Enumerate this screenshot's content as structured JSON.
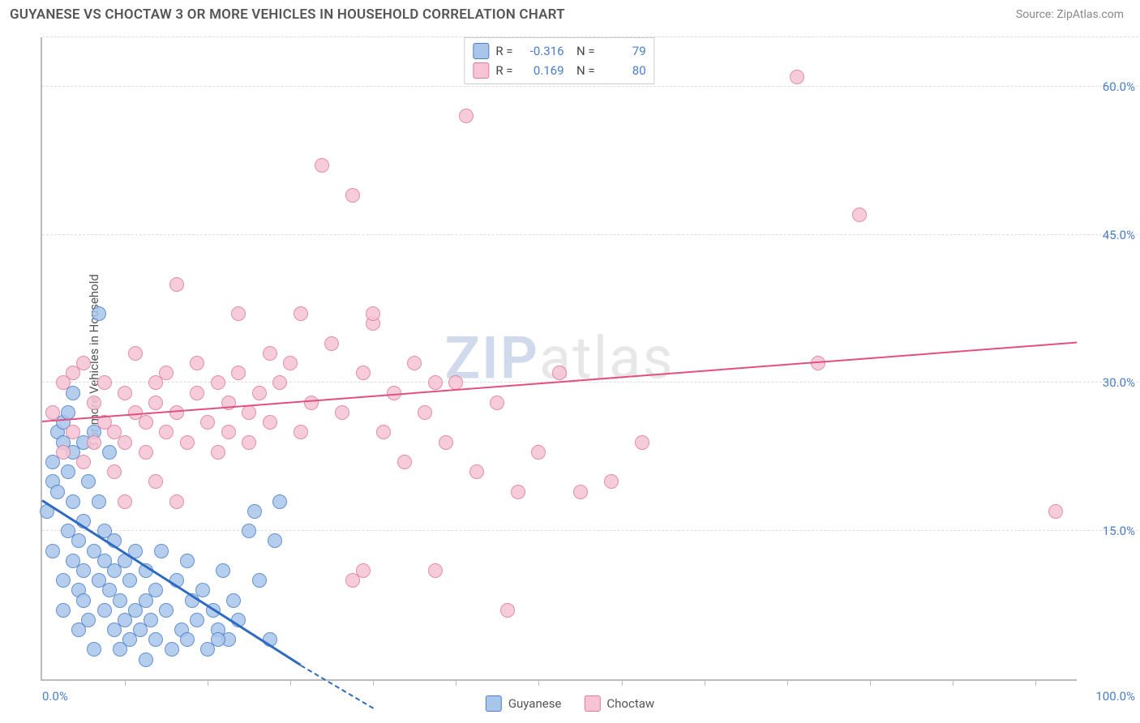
{
  "title": "GUYANESE VS CHOCTAW 3 OR MORE VEHICLES IN HOUSEHOLD CORRELATION CHART",
  "source_label": "Source: ZipAtlas.com",
  "ylabel": "3 or more Vehicles in Household",
  "watermark_prefix": "ZIP",
  "watermark_suffix": "atlas",
  "chart": {
    "type": "scatter",
    "xlim": [
      0,
      100
    ],
    "ylim": [
      0,
      65
    ],
    "yticks": [
      15,
      30,
      45,
      60
    ],
    "ytick_labels": [
      "15.0%",
      "30.0%",
      "45.0%",
      "60.0%"
    ],
    "xticks_major": [
      0,
      100
    ],
    "xtick_labels": [
      "0.0%",
      "100.0%"
    ],
    "xticks_minor": [
      8,
      16,
      24,
      32,
      40,
      48,
      56,
      64,
      72,
      80,
      88,
      96
    ],
    "grid_color": "#dddddd",
    "axis_color": "#bbbbbb",
    "background_color": "#ffffff",
    "marker_radius": 9,
    "marker_border_width": 1.5,
    "marker_fill_opacity": 0.35
  },
  "series": [
    {
      "name": "Guyanese",
      "color_border": "#4a7ec9",
      "color_fill": "#a9c6ea",
      "R": "-0.316",
      "N": "79",
      "trend": {
        "x1": 0,
        "y1": 18,
        "x2": 27,
        "y2": 0,
        "solid_until_x": 25,
        "color": "#2e6bc0",
        "width": 3
      },
      "points": [
        [
          0.5,
          17
        ],
        [
          1,
          20
        ],
        [
          1,
          22
        ],
        [
          1,
          13
        ],
        [
          1.5,
          25
        ],
        [
          1.5,
          19
        ],
        [
          2,
          24
        ],
        [
          2,
          26
        ],
        [
          2,
          10
        ],
        [
          2,
          7
        ],
        [
          2.5,
          21
        ],
        [
          2.5,
          15
        ],
        [
          2.5,
          27
        ],
        [
          3,
          23
        ],
        [
          3,
          18
        ],
        [
          3,
          12
        ],
        [
          3,
          29
        ],
        [
          3.5,
          14
        ],
        [
          3.5,
          9
        ],
        [
          3.5,
          5
        ],
        [
          4,
          16
        ],
        [
          4,
          24
        ],
        [
          4,
          11
        ],
        [
          4,
          8
        ],
        [
          4.5,
          20
        ],
        [
          4.5,
          6
        ],
        [
          5,
          13
        ],
        [
          5,
          25
        ],
        [
          5,
          3
        ],
        [
          5.5,
          18
        ],
        [
          5.5,
          10
        ],
        [
          5.5,
          37
        ],
        [
          6,
          15
        ],
        [
          6,
          7
        ],
        [
          6,
          12
        ],
        [
          6.5,
          9
        ],
        [
          6.5,
          23
        ],
        [
          7,
          11
        ],
        [
          7,
          5
        ],
        [
          7,
          14
        ],
        [
          7.5,
          8
        ],
        [
          7.5,
          3
        ],
        [
          8,
          12
        ],
        [
          8,
          6
        ],
        [
          8.5,
          10
        ],
        [
          8.5,
          4
        ],
        [
          9,
          13
        ],
        [
          9,
          7
        ],
        [
          9.5,
          5
        ],
        [
          10,
          11
        ],
        [
          10,
          8
        ],
        [
          10.5,
          6
        ],
        [
          11,
          9
        ],
        [
          11,
          4
        ],
        [
          11.5,
          13
        ],
        [
          12,
          7
        ],
        [
          12.5,
          3
        ],
        [
          13,
          10
        ],
        [
          13.5,
          5
        ],
        [
          14,
          12
        ],
        [
          14,
          4
        ],
        [
          14.5,
          8
        ],
        [
          15,
          6
        ],
        [
          15.5,
          9
        ],
        [
          16,
          3
        ],
        [
          16.5,
          7
        ],
        [
          17,
          5
        ],
        [
          17.5,
          11
        ],
        [
          18,
          4
        ],
        [
          18.5,
          8
        ],
        [
          19,
          6
        ],
        [
          20,
          15
        ],
        [
          20.5,
          17
        ],
        [
          21,
          10
        ],
        [
          22,
          4
        ],
        [
          22.5,
          14
        ],
        [
          23,
          18
        ],
        [
          17,
          4
        ],
        [
          10,
          2
        ]
      ]
    },
    {
      "name": "Choctaw",
      "color_border": "#e07a9a",
      "color_fill": "#f6c4d4",
      "R": "0.169",
      "N": "80",
      "trend": {
        "x1": 0,
        "y1": 26,
        "x2": 100,
        "y2": 34,
        "color": "#e05080",
        "width": 2
      },
      "points": [
        [
          1,
          27
        ],
        [
          2,
          30
        ],
        [
          2,
          23
        ],
        [
          3,
          25
        ],
        [
          3,
          31
        ],
        [
          4,
          32
        ],
        [
          4,
          22
        ],
        [
          5,
          28
        ],
        [
          5,
          24
        ],
        [
          6,
          26
        ],
        [
          6,
          30
        ],
        [
          7,
          25
        ],
        [
          7,
          21
        ],
        [
          8,
          29
        ],
        [
          8,
          24
        ],
        [
          9,
          27
        ],
        [
          9,
          33
        ],
        [
          10,
          26
        ],
        [
          10,
          23
        ],
        [
          11,
          30
        ],
        [
          11,
          28
        ],
        [
          12,
          25
        ],
        [
          12,
          31
        ],
        [
          13,
          40
        ],
        [
          13,
          27
        ],
        [
          14,
          24
        ],
        [
          15,
          29
        ],
        [
          15,
          32
        ],
        [
          16,
          26
        ],
        [
          17,
          30
        ],
        [
          17,
          23
        ],
        [
          18,
          28
        ],
        [
          18,
          25
        ],
        [
          19,
          31
        ],
        [
          19,
          37
        ],
        [
          20,
          27
        ],
        [
          20,
          24
        ],
        [
          21,
          29
        ],
        [
          22,
          33
        ],
        [
          22,
          26
        ],
        [
          23,
          30
        ],
        [
          24,
          32
        ],
        [
          25,
          25
        ],
        [
          25,
          37
        ],
        [
          26,
          28
        ],
        [
          27,
          52
        ],
        [
          28,
          34
        ],
        [
          29,
          27
        ],
        [
          30,
          49
        ],
        [
          31,
          31
        ],
        [
          32,
          36
        ],
        [
          32,
          37
        ],
        [
          33,
          25
        ],
        [
          34,
          29
        ],
        [
          35,
          22
        ],
        [
          36,
          32
        ],
        [
          37,
          27
        ],
        [
          38,
          11
        ],
        [
          38,
          30
        ],
        [
          39,
          24
        ],
        [
          40,
          30
        ],
        [
          41,
          57
        ],
        [
          42,
          21
        ],
        [
          44,
          28
        ],
        [
          45,
          7
        ],
        [
          46,
          19
        ],
        [
          48,
          23
        ],
        [
          50,
          31
        ],
        [
          52,
          19
        ],
        [
          55,
          20
        ],
        [
          58,
          24
        ],
        [
          73,
          61
        ],
        [
          75,
          32
        ],
        [
          79,
          47
        ],
        [
          98,
          17
        ],
        [
          30,
          10
        ],
        [
          31,
          11
        ],
        [
          13,
          18
        ],
        [
          11,
          20
        ],
        [
          8,
          18
        ]
      ]
    }
  ],
  "legend_bottom": [
    {
      "label": "Guyanese",
      "swatch_fill": "#a9c6ea",
      "swatch_border": "#4a7ec9"
    },
    {
      "label": "Choctaw",
      "swatch_fill": "#f6c4d4",
      "swatch_border": "#e07a9a"
    }
  ],
  "colors": {
    "title": "#555555",
    "source": "#888888",
    "tick_text": "#4a7ec9"
  }
}
